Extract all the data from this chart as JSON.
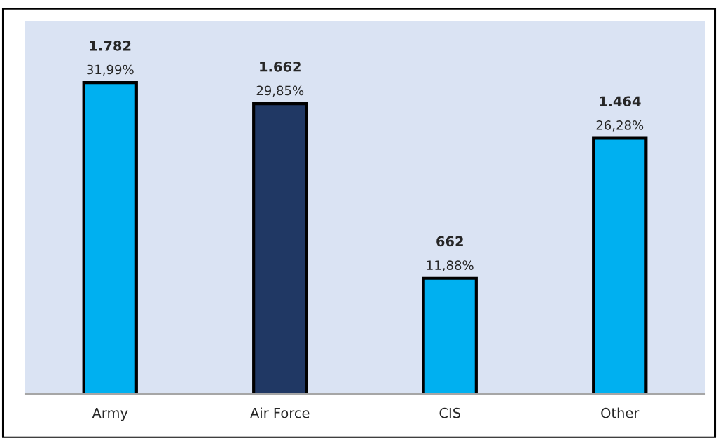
{
  "chart_data": {
    "type": "bar",
    "categories": [
      "Army",
      "Air Force",
      "CIS",
      "Other"
    ],
    "values": [
      1782,
      1662,
      662,
      1464
    ],
    "colors": [
      "#00b0f0",
      "#203864",
      "#00b0f0",
      "#00b0f0"
    ],
    "value_labels": [
      "1.782",
      "1.662",
      "662",
      "1.464"
    ],
    "annotations": [
      {
        "text": "31,99%",
        "x": "Army",
        "y": 1782
      },
      {
        "text": "29,85%",
        "x": "Air Force",
        "y": 1662
      },
      {
        "text": "11,88%",
        "x": "CIS",
        "y": 662
      },
      {
        "text": "26,28%",
        "x": "Other",
        "y": 1464
      }
    ],
    "ylim": [
      0,
      2135
    ],
    "tick_labels": "x",
    "grid": false,
    "legend": false
  }
}
